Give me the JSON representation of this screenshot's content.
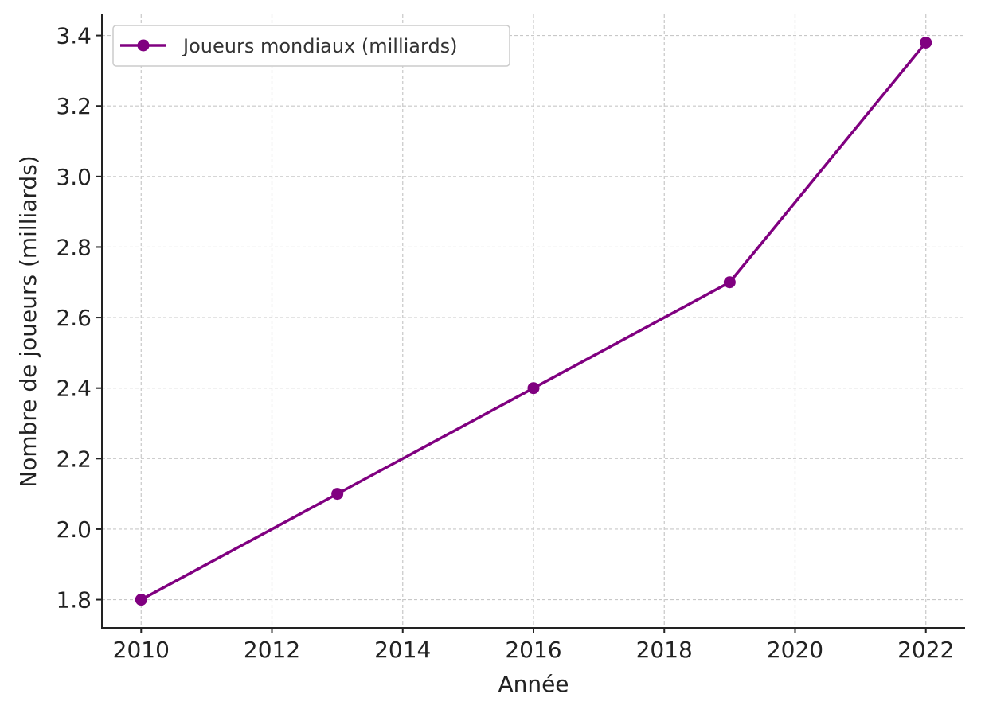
{
  "chart_data": {
    "type": "line",
    "title": "",
    "xlabel": "Année",
    "ylabel": "Nombre de joueurs (milliards)",
    "x": [
      2010,
      2013,
      2016,
      2019,
      2022
    ],
    "series": [
      {
        "name": "Joueurs mondiaux (milliards)",
        "values": [
          1.8,
          2.1,
          2.4,
          2.7,
          3.38
        ],
        "color": "#800080",
        "marker": "circle"
      }
    ],
    "xlim": [
      2009.4,
      2022.6
    ],
    "ylim": [
      1.72,
      3.46
    ],
    "x_ticks": [
      "2010",
      "2012",
      "2014",
      "2016",
      "2018",
      "2020",
      "2022"
    ],
    "y_ticks": [
      "1.8",
      "2.0",
      "2.2",
      "2.4",
      "2.6",
      "2.8",
      "3.0",
      "3.2",
      "3.4"
    ],
    "grid": true,
    "legend_position": "top-left"
  }
}
